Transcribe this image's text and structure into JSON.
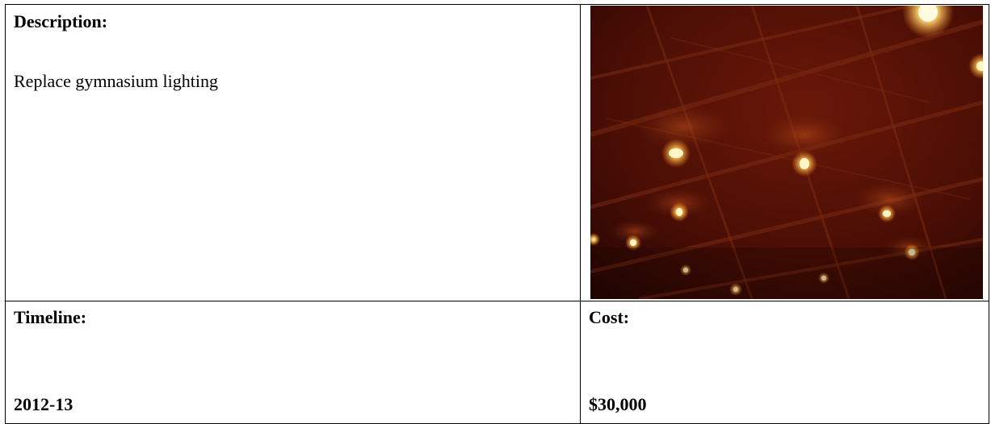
{
  "description": {
    "heading": "Description:",
    "text": "Replace gymnasium lighting"
  },
  "photo": {
    "subject": "gymnasium ceiling lights",
    "colors": {
      "ceiling_dark": "#2a0604",
      "ceiling_mid": "#5a1206",
      "beam": "#7a2a10",
      "lamp_glow": "#ffcf5a",
      "lamp_core": "#fff6c8"
    }
  },
  "timeline": {
    "heading": "Timeline:",
    "value": "2012-13"
  },
  "cost": {
    "heading": "Cost:",
    "value": "$30,000"
  }
}
